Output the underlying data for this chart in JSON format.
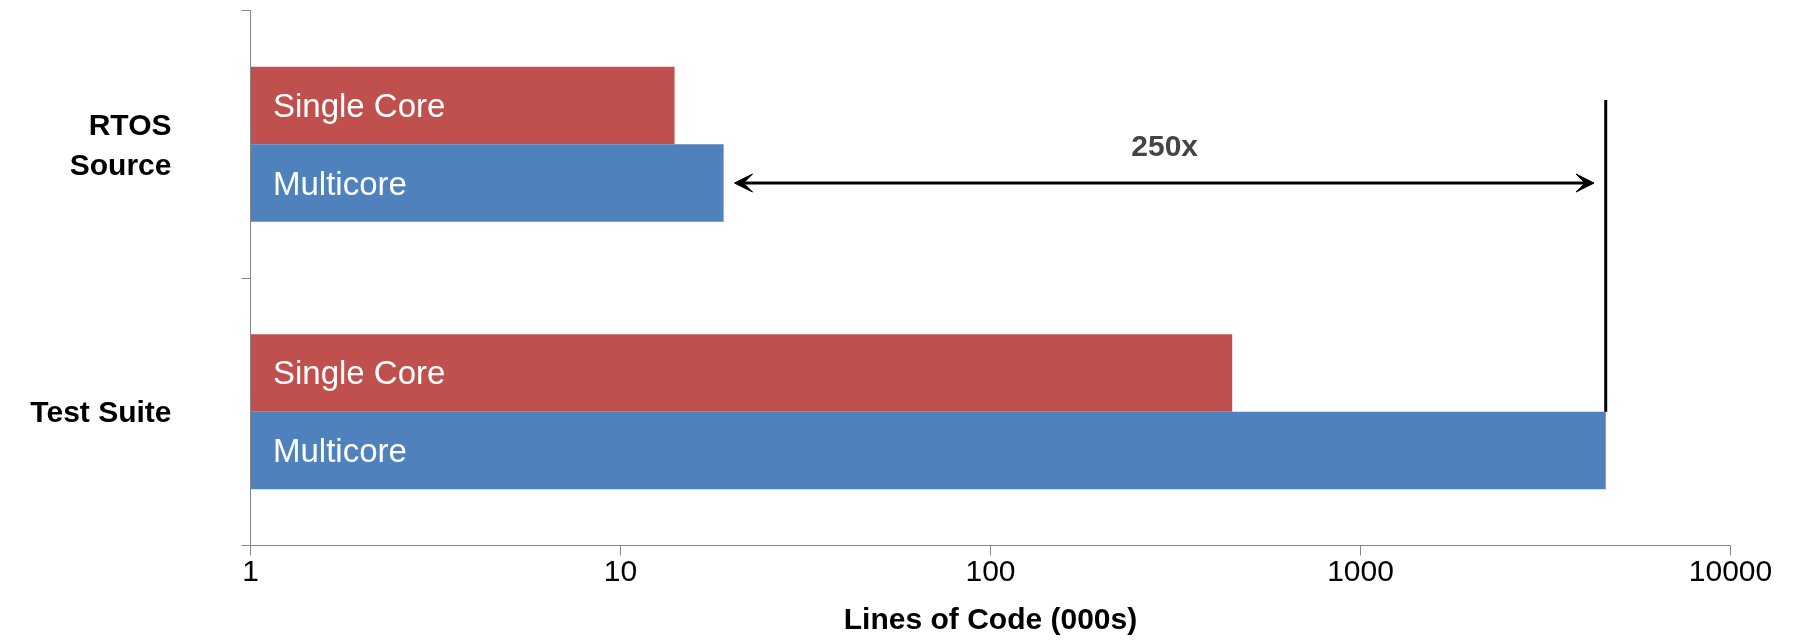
{
  "chart_data": {
    "type": "bar",
    "orientation": "horizontal",
    "log": "x",
    "categories": [
      "RTOS\nSource",
      "Test Suite"
    ],
    "series": [
      {
        "name": "Single Core",
        "color": "#c0504d",
        "values": [
          14,
          450
        ]
      },
      {
        "name": "Multicore",
        "color": "#4f81bd",
        "values": [
          19,
          4600
        ]
      }
    ],
    "xlim": [
      1,
      10000
    ],
    "xticks": [
      1,
      10,
      100,
      1000,
      10000
    ],
    "xlabel": "Lines of Code (000s)",
    "annotations": [
      "250x"
    ],
    "ref_lines": [
      {
        "axis": "x",
        "value": 4600
      }
    ],
    "grid": false
  }
}
